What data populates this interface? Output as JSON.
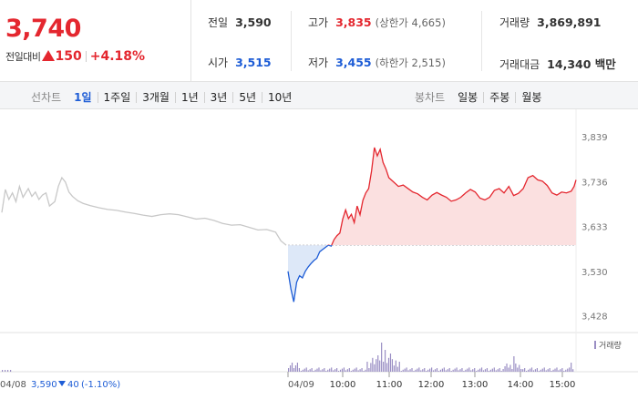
{
  "quote": {
    "price": "3,740",
    "change_label": "전일대비",
    "change_amount": "150",
    "change_percent": "+4.18%"
  },
  "stats": {
    "prev_close": {
      "label": "전일",
      "value": "3,590"
    },
    "open": {
      "label": "시가",
      "value": "3,515"
    },
    "high": {
      "label": "고가",
      "value": "3,835",
      "sub": "(상한가 4,665)"
    },
    "low": {
      "label": "저가",
      "value": "3,455",
      "sub": "(하한가 2,515)"
    },
    "volume": {
      "label": "거래량",
      "value": "3,869,891"
    },
    "amount": {
      "label": "거래대금",
      "value": "14,340 백만"
    }
  },
  "line_tabs": {
    "lead": "선차트",
    "items": [
      "1일",
      "1주일",
      "3개월",
      "1년",
      "3년",
      "5년",
      "10년"
    ],
    "active": 0
  },
  "candle_tabs": {
    "lead": "봉차트",
    "items": [
      "일봉",
      "주봉",
      "월봉"
    ]
  },
  "colors": {
    "up": "#e4272f",
    "down": "#1e5dd6",
    "prev": "#c8c8c8",
    "volume": "#9a8ec4"
  },
  "chart_data": {
    "type": "line",
    "baseline": 3590,
    "ylim": [
      3400,
      3860
    ],
    "y_ticks": [
      3839,
      3736,
      3633,
      3530,
      3428
    ],
    "y_tick_labels": [
      "3,839",
      "3,736",
      "3,633",
      "3,530",
      "3,428"
    ],
    "x_tick_labels": [
      "10:00",
      "11:00",
      "12:00",
      "13:00",
      "14:00",
      "15:00"
    ],
    "volume_label": "거래량",
    "prev_day": {
      "date_label": "04/08",
      "close_label": "3,590",
      "change_label": "40",
      "change_percent_label": "(-1.10%)",
      "points": [
        [
          0,
          3665
        ],
        [
          2,
          3718
        ],
        [
          4,
          3695
        ],
        [
          6,
          3710
        ],
        [
          8,
          3690
        ],
        [
          10,
          3725
        ],
        [
          12,
          3700
        ],
        [
          15,
          3720
        ],
        [
          17,
          3702
        ],
        [
          19,
          3712
        ],
        [
          21,
          3695
        ],
        [
          23,
          3705
        ],
        [
          25,
          3710
        ],
        [
          27,
          3680
        ],
        [
          30,
          3690
        ],
        [
          32,
          3725
        ],
        [
          34,
          3745
        ],
        [
          36,
          3735
        ],
        [
          38,
          3712
        ],
        [
          40,
          3702
        ],
        [
          43,
          3692
        ],
        [
          46,
          3686
        ],
        [
          50,
          3681
        ],
        [
          55,
          3676
        ],
        [
          60,
          3672
        ],
        [
          65,
          3670
        ],
        [
          70,
          3666
        ],
        [
          75,
          3663
        ],
        [
          80,
          3659
        ],
        [
          85,
          3656
        ],
        [
          90,
          3660
        ],
        [
          95,
          3662
        ],
        [
          100,
          3660
        ],
        [
          105,
          3655
        ],
        [
          110,
          3650
        ],
        [
          115,
          3652
        ],
        [
          120,
          3647
        ],
        [
          125,
          3640
        ],
        [
          130,
          3636
        ],
        [
          135,
          3637
        ],
        [
          140,
          3631
        ],
        [
          145,
          3625
        ],
        [
          150,
          3626
        ],
        [
          155,
          3620
        ],
        [
          158,
          3600
        ],
        [
          161,
          3590
        ]
      ]
    },
    "intraday": {
      "date_label": "04/09",
      "points": [
        [
          0,
          3530
        ],
        [
          3,
          3490
        ],
        [
          6,
          3460
        ],
        [
          9,
          3505
        ],
        [
          12,
          3520
        ],
        [
          15,
          3515
        ],
        [
          18,
          3530
        ],
        [
          21,
          3540
        ],
        [
          24,
          3548
        ],
        [
          27,
          3555
        ],
        [
          30,
          3560
        ],
        [
          33,
          3575
        ],
        [
          36,
          3580
        ],
        [
          39,
          3585
        ],
        [
          42,
          3590
        ],
        [
          45,
          3588
        ],
        [
          48,
          3603
        ],
        [
          51,
          3612
        ],
        [
          54,
          3618
        ],
        [
          57,
          3650
        ],
        [
          60,
          3671
        ],
        [
          63,
          3651
        ],
        [
          66,
          3661
        ],
        [
          69,
          3642
        ],
        [
          72,
          3680
        ],
        [
          75,
          3660
        ],
        [
          78,
          3693
        ],
        [
          81,
          3710
        ],
        [
          84,
          3720
        ],
        [
          87,
          3760
        ],
        [
          90,
          3814
        ],
        [
          93,
          3795
        ],
        [
          96,
          3810
        ],
        [
          99,
          3780
        ],
        [
          102,
          3765
        ],
        [
          105,
          3745
        ],
        [
          110,
          3735
        ],
        [
          115,
          3725
        ],
        [
          120,
          3728
        ],
        [
          125,
          3720
        ],
        [
          130,
          3712
        ],
        [
          135,
          3708
        ],
        [
          140,
          3700
        ],
        [
          145,
          3694
        ],
        [
          150,
          3705
        ],
        [
          155,
          3711
        ],
        [
          160,
          3705
        ],
        [
          165,
          3700
        ],
        [
          170,
          3691
        ],
        [
          175,
          3694
        ],
        [
          180,
          3700
        ],
        [
          185,
          3710
        ],
        [
          190,
          3718
        ],
        [
          195,
          3712
        ],
        [
          200,
          3698
        ],
        [
          205,
          3694
        ],
        [
          210,
          3700
        ],
        [
          215,
          3716
        ],
        [
          220,
          3720
        ],
        [
          225,
          3710
        ],
        [
          230,
          3725
        ],
        [
          235,
          3704
        ],
        [
          240,
          3709
        ],
        [
          245,
          3720
        ],
        [
          250,
          3745
        ],
        [
          255,
          3750
        ],
        [
          260,
          3740
        ],
        [
          265,
          3737
        ],
        [
          270,
          3727
        ],
        [
          275,
          3710
        ],
        [
          280,
          3705
        ],
        [
          285,
          3712
        ],
        [
          290,
          3710
        ],
        [
          295,
          3714
        ],
        [
          298,
          3725
        ],
        [
          300,
          3740
        ]
      ]
    }
  }
}
